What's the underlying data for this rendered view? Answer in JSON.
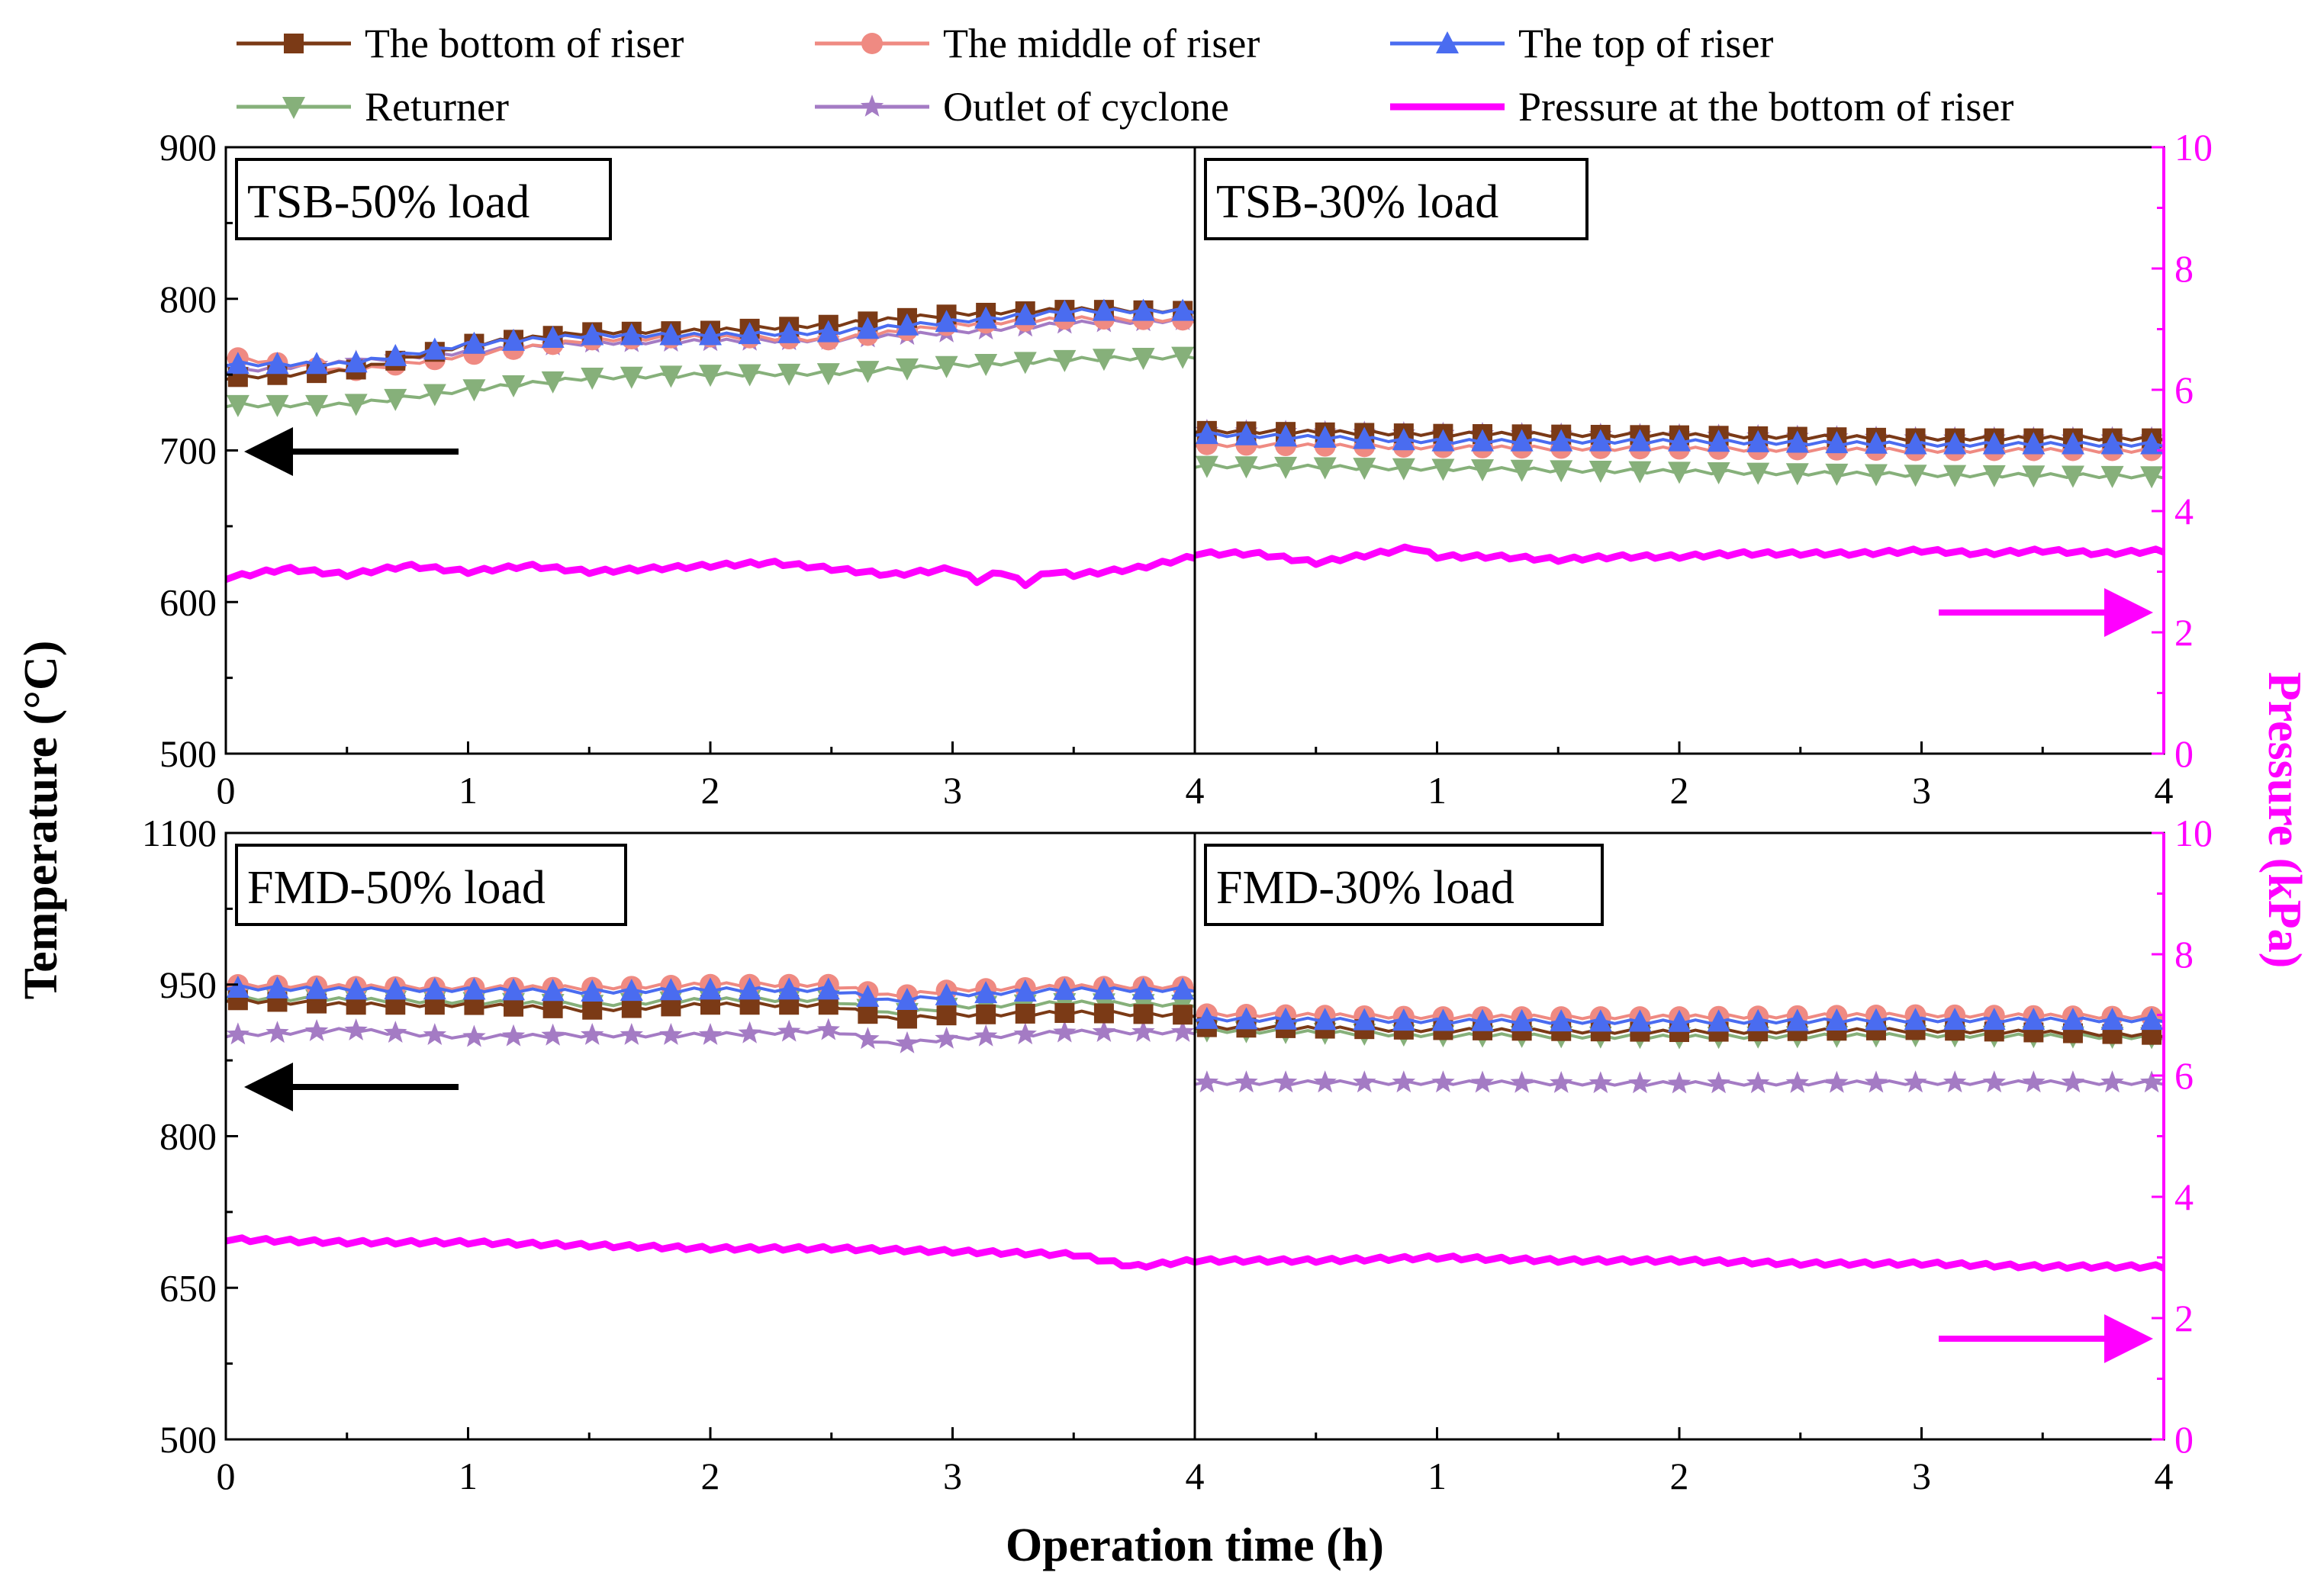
{
  "chart_data": {
    "type": "line",
    "x_label": "Operation time (h)",
    "left_axis_label": "Temperature (°C)",
    "right_axis_label": "Pressure (kPa)",
    "legend": [
      {
        "key": "bottom",
        "label": "The bottom of riser",
        "color": "#7b3a16",
        "marker": "square"
      },
      {
        "key": "middle",
        "label": "The middle of riser",
        "color": "#ef8a82",
        "marker": "circle"
      },
      {
        "key": "top",
        "label": "The top of riser",
        "color": "#4a6cf0",
        "marker": "triangle-up"
      },
      {
        "key": "returner",
        "label": "Returner",
        "color": "#86b07a",
        "marker": "triangle-down"
      },
      {
        "key": "cyclone",
        "label": "Outlet of cyclone",
        "color": "#a47bc4",
        "marker": "star"
      },
      {
        "key": "pressure",
        "label": "Pressure at the bottom of riser",
        "color": "#ff00ff",
        "marker": "none"
      }
    ],
    "x_ticks": [
      "0",
      "1",
      "2",
      "3",
      "4"
    ],
    "rows": [
      {
        "left_axis": {
          "range": [
            500,
            900
          ],
          "ticks": [
            "500",
            "600",
            "700",
            "800",
            "900"
          ]
        },
        "right_axis": {
          "range": [
            0,
            10
          ],
          "ticks": [
            "0",
            "2",
            "4",
            "6",
            "8",
            "10"
          ]
        },
        "panels": [
          {
            "label": "TSB-50% load",
            "arrow": "left",
            "series": {
              "bottom": {
                "x": [
                  0,
                  0.5,
                  1,
                  1.5,
                  2,
                  2.5,
                  3,
                  3.5,
                  4
                ],
                "y": [
                  748,
                  752,
                  770,
                  778,
                  779,
                  783,
                  790,
                  793,
                  792
                ]
              },
              "middle": {
                "x": [
                  0,
                  0.5,
                  1,
                  1.5,
                  2,
                  2.5,
                  3,
                  3.5,
                  4
                ],
                "y": [
                  762,
                  752,
                  763,
                  773,
                  775,
                  773,
                  783,
                  787,
                  786
                ]
              },
              "top": {
                "x": [
                  0,
                  0.5,
                  1,
                  1.5,
                  2,
                  2.5,
                  3,
                  3.5,
                  4
                ],
                "y": [
                  757,
                  757,
                  770,
                  776,
                  776,
                  778,
                  785,
                  792,
                  792
                ]
              },
              "returner": {
                "x": [
                  0,
                  0.5,
                  1,
                  1.5,
                  2,
                  2.5,
                  3,
                  3.5,
                  4
                ],
                "y": [
                  730,
                  730,
                  740,
                  748,
                  750,
                  751,
                  756,
                  760,
                  762
                ]
              },
              "cyclone": {
                "x": [
                  0,
                  0.5,
                  1,
                  1.5,
                  2,
                  2.5,
                  3,
                  3.5,
                  4
                ],
                "y": [
                  752,
                  758,
                  765,
                  771,
                  772,
                  773,
                  778,
                  784,
                  786
                ]
              },
              "pressure": {
                "x": [
                  0,
                  0.25,
                  0.5,
                  0.75,
                  1,
                  1.25,
                  1.5,
                  1.75,
                  2,
                  2.25,
                  2.5,
                  2.75,
                  3,
                  3.1,
                  3.2,
                  3.3,
                  3.4,
                  3.5,
                  3.75,
                  4
                ],
                "y": [
                  2.9,
                  3.05,
                  2.95,
                  3.1,
                  3.0,
                  3.1,
                  3.0,
                  3.05,
                  3.1,
                  3.15,
                  3.05,
                  2.95,
                  3.05,
                  2.85,
                  3.0,
                  2.8,
                  3.0,
                  2.95,
                  3.05,
                  3.25
                ]
              }
            }
          },
          {
            "label": "TSB-30% load",
            "arrow": "right",
            "series": {
              "bottom": {
                "x": [
                  0,
                  1,
                  2,
                  3,
                  4
                ],
                "y": [
                  713,
                  711,
                  710,
                  708,
                  708
                ]
              },
              "middle": {
                "x": [
                  0,
                  1,
                  2,
                  3,
                  4
                ],
                "y": [
                  704,
                  702,
                  701,
                  700,
                  700
                ]
              },
              "top": {
                "x": [
                  0,
                  1,
                  2,
                  3,
                  4
                ],
                "y": [
                  711,
                  706,
                  706,
                  704,
                  704
                ]
              },
              "returner": {
                "x": [
                  0,
                  1,
                  2,
                  3,
                  4
                ],
                "y": [
                  690,
                  688,
                  686,
                  684,
                  683
                ]
              },
              "cyclone": {
                "x": [
                  0,
                  1,
                  2,
                  3,
                  4
                ],
                "y": [
                  713,
                  711,
                  710,
                  708,
                  708
                ]
              },
              "pressure": {
                "x": [
                  0,
                  0.25,
                  0.5,
                  0.75,
                  0.9,
                  1,
                  1.25,
                  1.5,
                  1.75,
                  2,
                  2.25,
                  2.5,
                  2.75,
                  3,
                  3.25,
                  3.5,
                  3.75,
                  4
                ],
                "y": [
                  3.3,
                  3.3,
                  3.15,
                  3.3,
                  3.4,
                  3.25,
                  3.25,
                  3.2,
                  3.25,
                  3.25,
                  3.3,
                  3.3,
                  3.3,
                  3.35,
                  3.3,
                  3.35,
                  3.3,
                  3.35
                ]
              }
            }
          }
        ]
      },
      {
        "left_axis": {
          "range": [
            500,
            1100
          ],
          "ticks": [
            "500",
            "650",
            "800",
            "950",
            "1100"
          ]
        },
        "right_axis": {
          "range": [
            0,
            10
          ],
          "ticks": [
            "0",
            "2",
            "4",
            "6",
            "8",
            "10"
          ]
        },
        "panels": [
          {
            "label": "FMD-50% load",
            "arrow": "left",
            "series": {
              "bottom": {
                "x": [
                  0,
                  0.5,
                  1,
                  1.5,
                  2,
                  2.5,
                  2.75,
                  3,
                  3.5,
                  4
                ],
                "y": [
                  935,
                  930,
                  930,
                  925,
                  930,
                  930,
                  915,
                  920,
                  922,
                  920
                ]
              },
              "middle": {
                "x": [
                  0,
                  0.5,
                  1,
                  1.5,
                  2,
                  2.5,
                  2.75,
                  3,
                  3.5,
                  4
                ],
                "y": [
                  950,
                  948,
                  947,
                  947,
                  950,
                  950,
                  938,
                  945,
                  948,
                  948
                ]
              },
              "top": {
                "x": [
                  0,
                  0.5,
                  1,
                  1.5,
                  2,
                  2.5,
                  2.75,
                  3,
                  3.5,
                  4
                ],
                "y": [
                  947,
                  945,
                  945,
                  943,
                  945,
                  945,
                  933,
                  940,
                  945,
                  945
                ]
              },
              "returner": {
                "x": [
                  0,
                  0.5,
                  1,
                  1.5,
                  2,
                  2.5,
                  2.75,
                  3,
                  3.5,
                  4
                ],
                "y": [
                  937,
                  935,
                  933,
                  930,
                  935,
                  935,
                  920,
                  928,
                  932,
                  930
                ]
              },
              "cyclone": {
                "x": [
                  0,
                  0.5,
                  1,
                  1.5,
                  2,
                  2.5,
                  2.75,
                  3,
                  3.5,
                  4
                ],
                "y": [
                  900,
                  905,
                  898,
                  900,
                  900,
                  905,
                  890,
                  897,
                  903,
                  903
                ]
              },
              "pressure": {
                "x": [
                  0,
                  0.5,
                  1,
                  1.5,
                  2,
                  2.5,
                  3,
                  3.5,
                  3.75,
                  4
                ],
                "y": [
                  3.3,
                  3.25,
                  3.25,
                  3.2,
                  3.15,
                  3.15,
                  3.1,
                  3.05,
                  2.85,
                  2.95
                ]
              }
            }
          },
          {
            "label": "FMD-30% load",
            "arrow": "right",
            "series": {
              "bottom": {
                "x": [
                  0,
                  1,
                  2,
                  3,
                  4
                ],
                "y": [
                  908,
                  905,
                  903,
                  905,
                  900
                ]
              },
              "middle": {
                "x": [
                  0,
                  1,
                  2,
                  3,
                  4
                ],
                "y": [
                  921,
                  918,
                  918,
                  920,
                  918
                ]
              },
              "top": {
                "x": [
                  0,
                  1,
                  2,
                  3,
                  4
                ],
                "y": [
                  916,
                  914,
                  913,
                  915,
                  915
                ]
              },
              "returner": {
                "x": [
                  0,
                  1,
                  2,
                  3,
                  4
                ],
                "y": [
                  905,
                  900,
                  898,
                  900,
                  898
                ]
              },
              "cyclone": {
                "x": [
                  0,
                  1,
                  2,
                  3,
                  4
                ],
                "y": [
                  853,
                  853,
                  852,
                  853,
                  853
                ]
              },
              "pressure": {
                "x": [
                  0,
                  0.5,
                  1,
                  1.5,
                  2,
                  2.5,
                  3,
                  3.5,
                  4
                ],
                "y": [
                  2.95,
                  2.95,
                  3.0,
                  2.95,
                  2.95,
                  2.9,
                  2.9,
                  2.85,
                  2.85
                ]
              }
            }
          }
        ]
      }
    ]
  }
}
